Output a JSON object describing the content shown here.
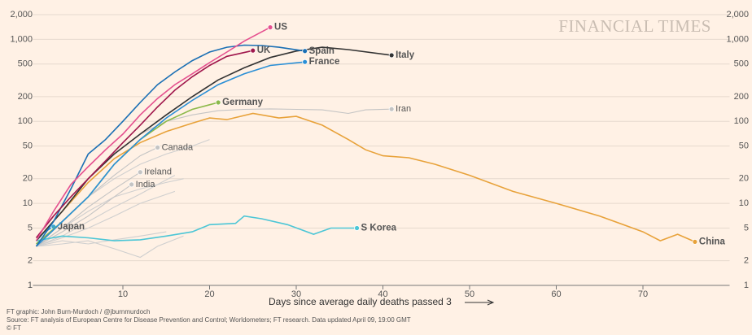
{
  "chart_data": {
    "type": "line",
    "watermark": "FINANCIAL TIMES",
    "xlabel": "Days since average daily deaths passed 3",
    "notes": [
      "FT graphic: John Burn-Murdoch / @jburnmurdoch",
      "Source: FT analysis of European Centre for Disease Prevention and Control; Worldometers; FT research. Data updated April 09, 19:00 GMT",
      "© FT"
    ],
    "log_y": true,
    "grid": true,
    "xlim": [
      0,
      80
    ],
    "xticks": [
      10,
      20,
      30,
      40,
      50,
      60,
      70
    ],
    "ylim": [
      1,
      2000
    ],
    "yticks": [
      1,
      2,
      5,
      10,
      20,
      50,
      100,
      200,
      500,
      {
        "value": 1000,
        "label": "1,000"
      },
      {
        "value": 2000,
        "label": "2,000"
      }
    ],
    "series": [
      {
        "color": "#cfcfcf",
        "x": [
          0,
          3,
          6,
          9,
          12,
          15,
          17
        ],
        "values": [
          3,
          5,
          8,
          12,
          15,
          18,
          20
        ]
      },
      {
        "color": "#cfcfcf",
        "x": [
          0,
          3,
          6,
          9,
          12,
          16
        ],
        "values": [
          3,
          3.8,
          5,
          7,
          10,
          14
        ]
      },
      {
        "color": "#cfcfcf",
        "x": [
          0,
          3,
          6,
          9,
          12,
          15
        ],
        "values": [
          3,
          3.5,
          3.2,
          3.6,
          4,
          4.5
        ]
      },
      {
        "color": "#cfcfcf",
        "x": [
          0,
          3,
          6,
          9,
          12,
          14,
          17
        ],
        "values": [
          3,
          3.2,
          3.5,
          2.8,
          2.2,
          3,
          4
        ]
      },
      {
        "color": "#cfcfcf",
        "x": [
          0,
          3,
          6,
          9,
          12,
          15,
          18,
          20
        ],
        "values": [
          3,
          6,
          12,
          20,
          30,
          40,
          50,
          60
        ]
      },
      {
        "color": "#cfcfcf",
        "x": [
          0,
          3,
          6,
          9,
          12,
          14,
          16
        ],
        "values": [
          3,
          4,
          6,
          9,
          13,
          17,
          22
        ]
      },
      {
        "name": "Iran",
        "color": "#c4c4c4",
        "highlight": false,
        "x": [
          0,
          3,
          6,
          9,
          12,
          15,
          18,
          21,
          24,
          27,
          30,
          33,
          36,
          38,
          41
        ],
        "values": [
          3.5,
          8,
          20,
          40,
          70,
          100,
          120,
          135,
          140,
          142,
          140,
          138,
          125,
          138,
          141
        ]
      },
      {
        "name": "Canada",
        "color": "#c4c4c4",
        "highlight": false,
        "x": [
          0,
          3,
          6,
          9,
          12,
          14
        ],
        "values": [
          3,
          6,
          12,
          22,
          38,
          48
        ]
      },
      {
        "name": "Ireland",
        "color": "#c4c4c4",
        "highlight": false,
        "x": [
          0,
          3,
          6,
          9,
          12
        ],
        "values": [
          3,
          5,
          9,
          15,
          24
        ]
      },
      {
        "name": "India",
        "color": "#c4c4c4",
        "highlight": false,
        "x": [
          0,
          3,
          6,
          9,
          11
        ],
        "values": [
          3,
          4.5,
          7,
          12,
          17
        ]
      },
      {
        "name": "China",
        "color": "#e8a23a",
        "highlight": true,
        "x": [
          0,
          3,
          6,
          9,
          12,
          15,
          18,
          20,
          22,
          25,
          28,
          30,
          33,
          36,
          38,
          40,
          43,
          46,
          50,
          55,
          60,
          65,
          70,
          72,
          74,
          76
        ],
        "values": [
          3.5,
          8,
          18,
          35,
          55,
          75,
          95,
          110,
          105,
          125,
          110,
          115,
          90,
          60,
          45,
          38,
          36,
          30,
          22,
          14,
          10,
          7,
          4.5,
          3.5,
          4.2,
          3.4
        ]
      },
      {
        "name": "S Korea",
        "color": "#4cc6d6",
        "highlight": true,
        "x": [
          0,
          3,
          6,
          9,
          12,
          15,
          18,
          20,
          23,
          24,
          26,
          29,
          32,
          34,
          37
        ],
        "values": [
          3.5,
          4,
          3.8,
          3.5,
          3.6,
          4,
          4.5,
          5.5,
          5.7,
          7,
          6.5,
          5.5,
          4.2,
          5,
          5
        ]
      },
      {
        "name": "Japan",
        "color": "#3aa6d0",
        "highlight": true,
        "x": [
          0,
          1,
          2
        ],
        "values": [
          3.5,
          4.5,
          5.2
        ]
      },
      {
        "name": "Germany",
        "color": "#8cb94a",
        "highlight": true,
        "x": [
          0,
          3,
          6,
          9,
          12,
          15,
          18,
          21
        ],
        "values": [
          3.2,
          6,
          12,
          30,
          60,
          100,
          140,
          170
        ]
      },
      {
        "name": "France",
        "color": "#2a8fd6",
        "highlight": true,
        "x": [
          0,
          3,
          6,
          9,
          12,
          15,
          18,
          21,
          24,
          27,
          31
        ],
        "values": [
          3,
          6,
          12,
          30,
          60,
          110,
          180,
          280,
          380,
          480,
          530
        ]
      },
      {
        "name": "Italy",
        "color": "#333333",
        "highlight": true,
        "x": [
          0,
          3,
          6,
          9,
          12,
          15,
          18,
          21,
          24,
          27,
          30,
          33,
          36,
          41
        ],
        "values": [
          3.5,
          8,
          20,
          40,
          70,
          120,
          200,
          320,
          450,
          600,
          720,
          800,
          750,
          640
        ]
      },
      {
        "name": "Spain",
        "color": "#1a6fb4",
        "highlight": true,
        "x": [
          0,
          2,
          4,
          6,
          8,
          10,
          12,
          14,
          16,
          18,
          20,
          22,
          24,
          26,
          28,
          31
        ],
        "values": [
          3,
          6,
          15,
          40,
          60,
          100,
          170,
          280,
          400,
          550,
          700,
          800,
          850,
          840,
          800,
          720
        ]
      },
      {
        "name": "UK",
        "color": "#a0174c",
        "highlight": true,
        "x": [
          0,
          2,
          4,
          6,
          8,
          10,
          12,
          14,
          16,
          18,
          20,
          22,
          25
        ],
        "values": [
          3.8,
          7,
          12,
          20,
          33,
          55,
          90,
          150,
          240,
          350,
          480,
          620,
          730
        ]
      },
      {
        "name": "US",
        "color": "#e5508f",
        "highlight": true,
        "x": [
          0,
          2,
          4,
          6,
          8,
          10,
          12,
          14,
          16,
          18,
          20,
          22,
          24,
          27
        ],
        "values": [
          3.5,
          8,
          17,
          28,
          45,
          70,
          120,
          190,
          280,
          380,
          520,
          700,
          950,
          1400
        ]
      }
    ]
  }
}
